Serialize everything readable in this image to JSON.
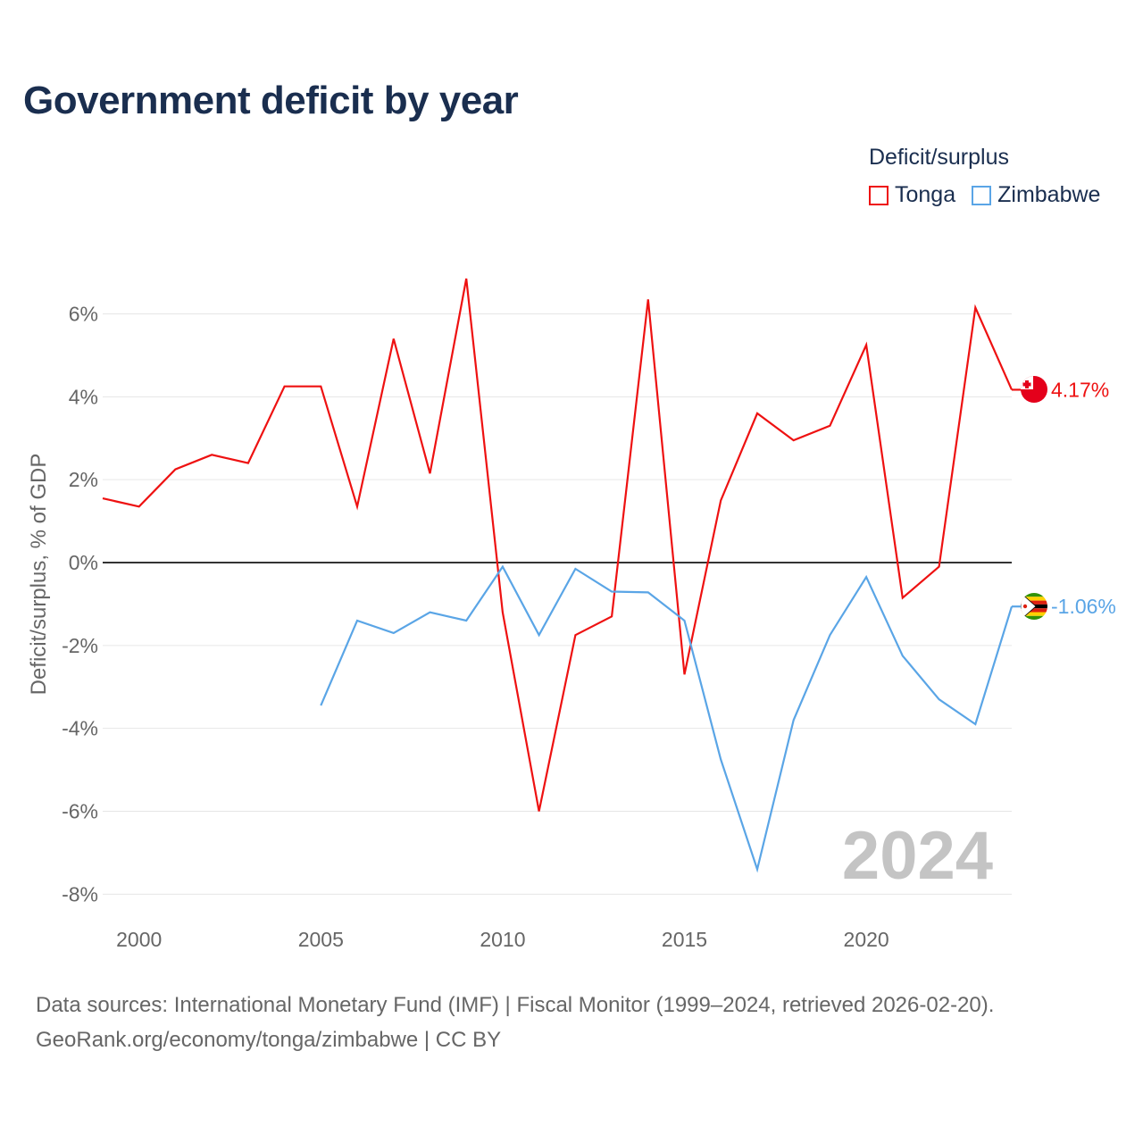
{
  "chart_data": {
    "type": "line",
    "title": "Government deficit by year",
    "ylabel": "Deficit/surplus, % of GDP",
    "xlabel": "",
    "legend_title": "Deficit/surplus",
    "legend_position": "top-right",
    "year_watermark": "2024",
    "xlim": [
      1999,
      2024
    ],
    "ylim": [
      -8,
      7
    ],
    "x_ticks": [
      2000,
      2005,
      2010,
      2015,
      2020
    ],
    "y_ticks": [
      6,
      4,
      2,
      0,
      -2,
      -4,
      -6,
      -8
    ],
    "y_tick_labels": [
      "6%",
      "4%",
      "2%",
      "0%",
      "-2%",
      "-4%",
      "-6%",
      "-8%"
    ],
    "series": [
      {
        "name": "Tonga",
        "color": "#ee1111",
        "flag": "tonga-flag-icon",
        "end_label": "4.17%",
        "x": [
          1999,
          2000,
          2001,
          2002,
          2003,
          2004,
          2005,
          2006,
          2007,
          2008,
          2009,
          2010,
          2011,
          2012,
          2013,
          2014,
          2015,
          2016,
          2017,
          2018,
          2019,
          2020,
          2021,
          2022,
          2023,
          2024
        ],
        "values": [
          1.55,
          1.35,
          2.25,
          2.6,
          2.4,
          4.25,
          4.25,
          1.35,
          5.4,
          2.15,
          6.85,
          -1.2,
          -6.0,
          -1.75,
          -1.3,
          6.35,
          -2.7,
          1.5,
          3.6,
          2.95,
          3.3,
          5.25,
          -0.85,
          -0.1,
          6.15,
          4.17
        ]
      },
      {
        "name": "Zimbabwe",
        "color": "#5aa5e6",
        "flag": "zimbabwe-flag-icon",
        "end_label": "-1.06%",
        "x": [
          2005,
          2006,
          2007,
          2008,
          2009,
          2010,
          2011,
          2012,
          2013,
          2014,
          2015,
          2016,
          2017,
          2018,
          2019,
          2020,
          2021,
          2022,
          2023,
          2024
        ],
        "values": [
          -3.45,
          -1.4,
          -1.7,
          -1.2,
          -1.4,
          -0.1,
          -1.75,
          -0.15,
          -0.7,
          -0.72,
          -1.4,
          -4.75,
          -7.4,
          -3.8,
          -1.75,
          -0.35,
          -2.25,
          -3.3,
          -3.9,
          -1.06
        ]
      }
    ]
  },
  "footer": {
    "line1": "Data sources: International Monetary Fund (IMF) | Fiscal Monitor (1999–2024, retrieved 2026-02-20).",
    "line2": "GeoRank.org/economy/tonga/zimbabwe | CC BY"
  }
}
